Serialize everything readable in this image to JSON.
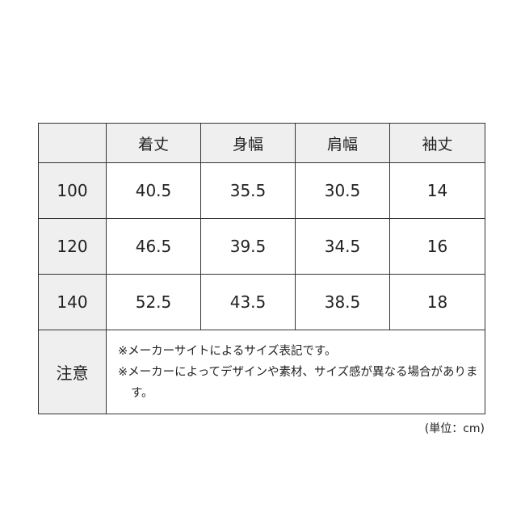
{
  "headers": [
    "",
    "着丈",
    "身幅",
    "肩幅",
    "袖丈"
  ],
  "rows": [
    {
      "size": "100",
      "values": [
        "40.5",
        "35.5",
        "30.5",
        "14"
      ]
    },
    {
      "size": "120",
      "values": [
        "46.5",
        "39.5",
        "34.5",
        "16"
      ]
    },
    {
      "size": "140",
      "values": [
        "52.5",
        "43.5",
        "38.5",
        "18"
      ]
    }
  ],
  "notes_label": "注意",
  "notes": [
    "※メーカーサイトによるサイズ表記です。",
    "※メーカーによってデザインや素材、サイズ感が異なる場合があります。"
  ],
  "unit": "(単位：cm)",
  "colors": {
    "header_bg": "#efefef",
    "border": "#333333"
  }
}
